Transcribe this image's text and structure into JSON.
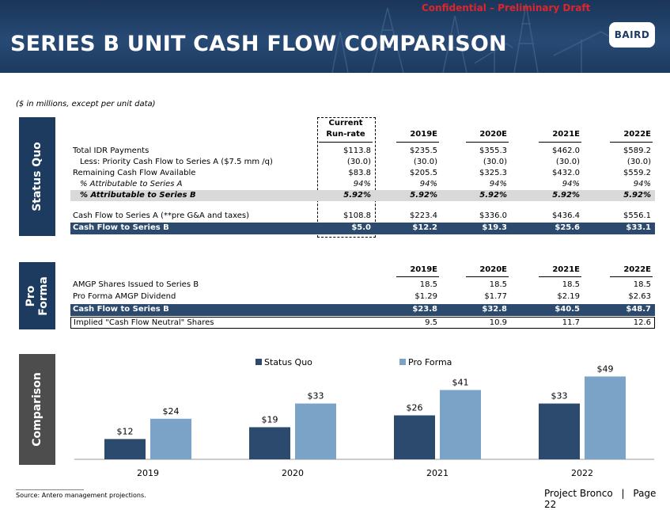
{
  "confidential": "Confidential – Preliminary Draft",
  "title": "SERIES B UNIT CASH FLOW COMPARISON",
  "logo": "BAIRD",
  "subtitle": "($ in millions, except per unit data)",
  "sections": {
    "status_quo": "Status Quo",
    "pro_forma_line1": "Pro",
    "pro_forma_line2": "Forma",
    "comparison": "Comparison"
  },
  "status_quo_table": {
    "current_header_1": "Current",
    "current_header_2": "Run-rate",
    "years": [
      "2019E",
      "2020E",
      "2021E",
      "2022E"
    ],
    "rows": [
      {
        "label": "Total IDR Payments",
        "current": "$113.8",
        "values": [
          "$235.5",
          "$355.3",
          "$462.0",
          "$589.2"
        ],
        "style": ""
      },
      {
        "label": "Less: Priority Cash Flow to Series A ($7.5 mm /q)",
        "current": "(30.0)",
        "values": [
          "(30.0)",
          "(30.0)",
          "(30.0)",
          "(30.0)"
        ],
        "style": "indent"
      },
      {
        "label": "Remaining Cash Flow Available",
        "current": "$83.8",
        "values": [
          "$205.5",
          "$325.3",
          "$432.0",
          "$559.2"
        ],
        "style": ""
      },
      {
        "label": "% Attributable to Series A",
        "current": "94%",
        "values": [
          "94%",
          "94%",
          "94%",
          "94%"
        ],
        "style": "ital"
      },
      {
        "label": "% Attributable to Series B",
        "current": "5.92%",
        "values": [
          "5.92%",
          "5.92%",
          "5.92%",
          "5.92%"
        ],
        "style": "bold-ital grey"
      },
      {
        "label": "Cash Flow to Series A (**pre G&A and taxes)",
        "current": "$108.8",
        "values": [
          "$223.4",
          "$336.0",
          "$436.4",
          "$556.1"
        ],
        "style": ""
      },
      {
        "label": "Cash Flow to Series B",
        "current": "$5.0",
        "values": [
          "$12.2",
          "$19.3",
          "$25.6",
          "$33.1"
        ],
        "style": "navy"
      }
    ]
  },
  "pro_forma_table": {
    "years": [
      "2019E",
      "2020E",
      "2021E",
      "2022E"
    ],
    "rows": [
      {
        "label": "AMGP Shares Issued to Series B",
        "values": [
          "18.5",
          "18.5",
          "18.5",
          "18.5"
        ],
        "style": ""
      },
      {
        "label": "Pro Forma AMGP Dividend",
        "values": [
          "$1.29",
          "$1.77",
          "$2.19",
          "$2.63"
        ],
        "style": ""
      },
      {
        "label": "Cash Flow to Series B",
        "values": [
          "$23.8",
          "$32.8",
          "$40.5",
          "$48.7"
        ],
        "style": "navy"
      },
      {
        "label": "Implied \"Cash Flow Neutral\" Shares",
        "values": [
          "9.5",
          "10.9",
          "11.7",
          "12.6"
        ],
        "style": "bordered"
      }
    ]
  },
  "chart_data": {
    "type": "bar",
    "categories": [
      "2019",
      "2020",
      "2021",
      "2022"
    ],
    "series": [
      {
        "name": "Status Quo",
        "values": [
          12,
          19,
          26,
          33
        ],
        "labels": [
          "$12",
          "$19",
          "$26",
          "$33"
        ],
        "color": "#2b4a6e"
      },
      {
        "name": "Pro Forma",
        "values": [
          24,
          33,
          41,
          49
        ],
        "labels": [
          "$24",
          "$33",
          "$41",
          "$49"
        ],
        "color": "#7ba3c8"
      }
    ],
    "ylim": [
      0,
      52
    ],
    "legend": "top",
    "grid": false
  },
  "footer": {
    "source": "Source: Antero management projections.",
    "project": "Project Bronco",
    "separator": "|",
    "page": "Page 22"
  }
}
